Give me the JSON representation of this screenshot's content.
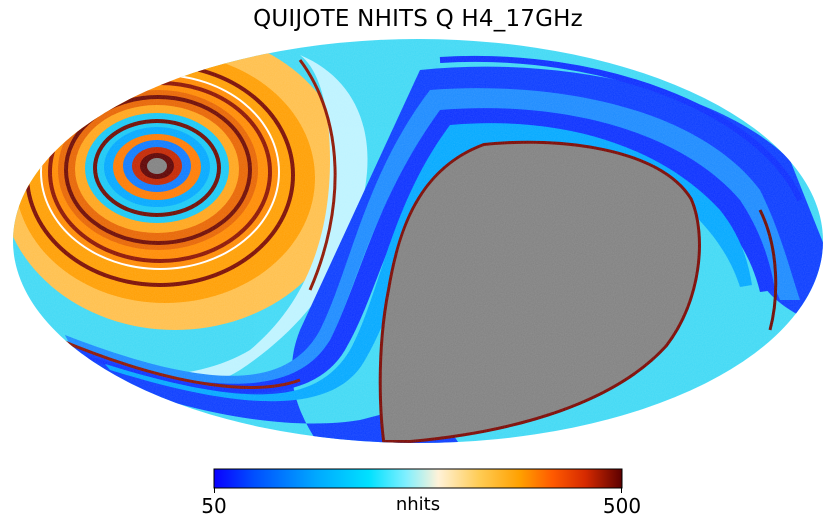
{
  "title": "QUIJOTE NHITS Q H4_17GHz",
  "unit": "nhits",
  "colorbar": {
    "min_label": "50",
    "max_label": "500",
    "min": 50,
    "max": 500,
    "colormap_stops": [
      "#0a00ff",
      "#0050ff",
      "#00a8ff",
      "#00e1ff",
      "#7fefff",
      "#fff2d8",
      "#ffcc55",
      "#ffa000",
      "#ff5a00",
      "#d62a00",
      "#5c0000"
    ]
  },
  "map": {
    "projection": "mollweide",
    "masked_region_color": "#808080",
    "background_color": "#ffffff"
  }
}
